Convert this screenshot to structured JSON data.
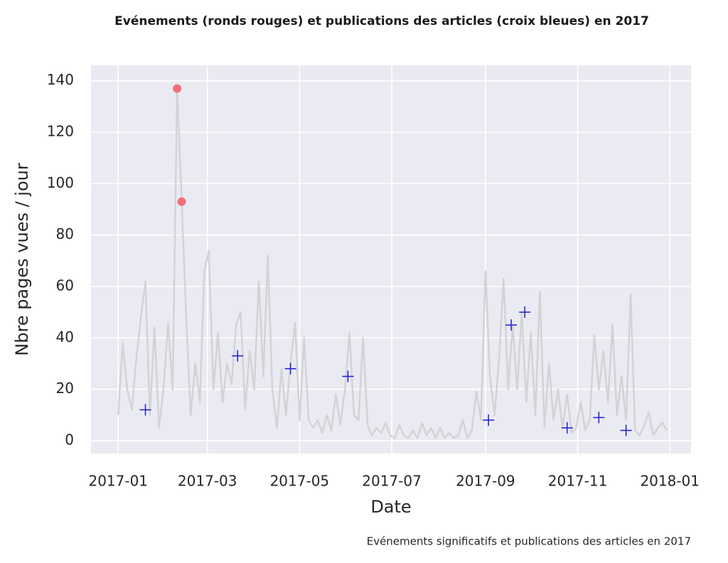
{
  "chart_data": {
    "type": "line",
    "title": "Evénements (ronds rouges) et publications des articles (croix bleues) en 2017",
    "subtitle": "Evénements significatifs et publications des articles en 2017",
    "x_label": "Date",
    "y_label": "Nbre pages vues / jour",
    "xlim": [
      -18,
      379
    ],
    "ylim": [
      -5,
      146
    ],
    "xticks": [
      {
        "value": 0,
        "label": "2017-01"
      },
      {
        "value": 59,
        "label": "2017-03"
      },
      {
        "value": 120,
        "label": "2017-05"
      },
      {
        "value": 181,
        "label": "2017-07"
      },
      {
        "value": 243,
        "label": "2017-09"
      },
      {
        "value": 304,
        "label": "2017-11"
      },
      {
        "value": 365,
        "label": "2018-01"
      }
    ],
    "yticks": [
      0,
      20,
      40,
      60,
      80,
      100,
      120,
      140
    ],
    "grid": true,
    "series": [
      {
        "type": "line",
        "color": "#d3d3d6",
        "x": [
          0,
          3,
          6,
          9,
          12,
          15,
          18,
          21,
          24,
          27,
          30,
          33,
          36,
          39,
          42,
          45,
          48,
          51,
          54,
          57,
          60,
          63,
          66,
          69,
          72,
          75,
          78,
          81,
          84,
          87,
          90,
          93,
          96,
          99,
          102,
          105,
          108,
          111,
          114,
          117,
          120,
          123,
          126,
          129,
          132,
          135,
          138,
          141,
          144,
          147,
          150,
          153,
          156,
          159,
          162,
          165,
          168,
          171,
          174,
          177,
          180,
          183,
          186,
          189,
          192,
          195,
          198,
          201,
          204,
          207,
          210,
          213,
          216,
          219,
          222,
          225,
          228,
          231,
          234,
          237,
          240,
          243,
          246,
          249,
          252,
          255,
          258,
          261,
          264,
          267,
          270,
          273,
          276,
          279,
          282,
          285,
          288,
          291,
          294,
          297,
          300,
          303,
          306,
          309,
          312,
          315,
          318,
          321,
          324,
          327,
          330,
          333,
          336,
          339,
          342,
          345,
          348,
          351,
          354,
          357,
          360,
          363
        ],
        "values": [
          10,
          38,
          20,
          12,
          32,
          48,
          62,
          10,
          44,
          5,
          20,
          46,
          20,
          137,
          93,
          48,
          10,
          30,
          15,
          66,
          74,
          20,
          42,
          15,
          30,
          22,
          45,
          50,
          12,
          35,
          20,
          62,
          25,
          72,
          20,
          5,
          28,
          10,
          30,
          46,
          8,
          40,
          8,
          5,
          8,
          3,
          10,
          4,
          18,
          6,
          20,
          42,
          10,
          8,
          40,
          6,
          2,
          5,
          3,
          7,
          2,
          1,
          6,
          2,
          1,
          4,
          1,
          7,
          2,
          5,
          1,
          5,
          1,
          3,
          1,
          2,
          8,
          1,
          4,
          19,
          8,
          66,
          25,
          10,
          32,
          63,
          20,
          45,
          20,
          50,
          15,
          42,
          10,
          58,
          5,
          30,
          8,
          20,
          5,
          18,
          3,
          5,
          15,
          4,
          8,
          41,
          20,
          35,
          15,
          45,
          10,
          25,
          8,
          57,
          4,
          2,
          6,
          11,
          2,
          5,
          7,
          4
        ]
      },
      {
        "type": "scatter",
        "marker": "circle",
        "color": "#f0717a",
        "x": [
          39,
          42
        ],
        "values": [
          137,
          93
        ]
      },
      {
        "type": "scatter",
        "marker": "plus",
        "color": "#1c1cd4",
        "x": [
          18,
          79,
          114,
          152,
          245,
          260,
          269,
          297,
          318,
          336
        ],
        "values": [
          12,
          33,
          28,
          25,
          8,
          45,
          50,
          5,
          9,
          4
        ]
      }
    ]
  }
}
